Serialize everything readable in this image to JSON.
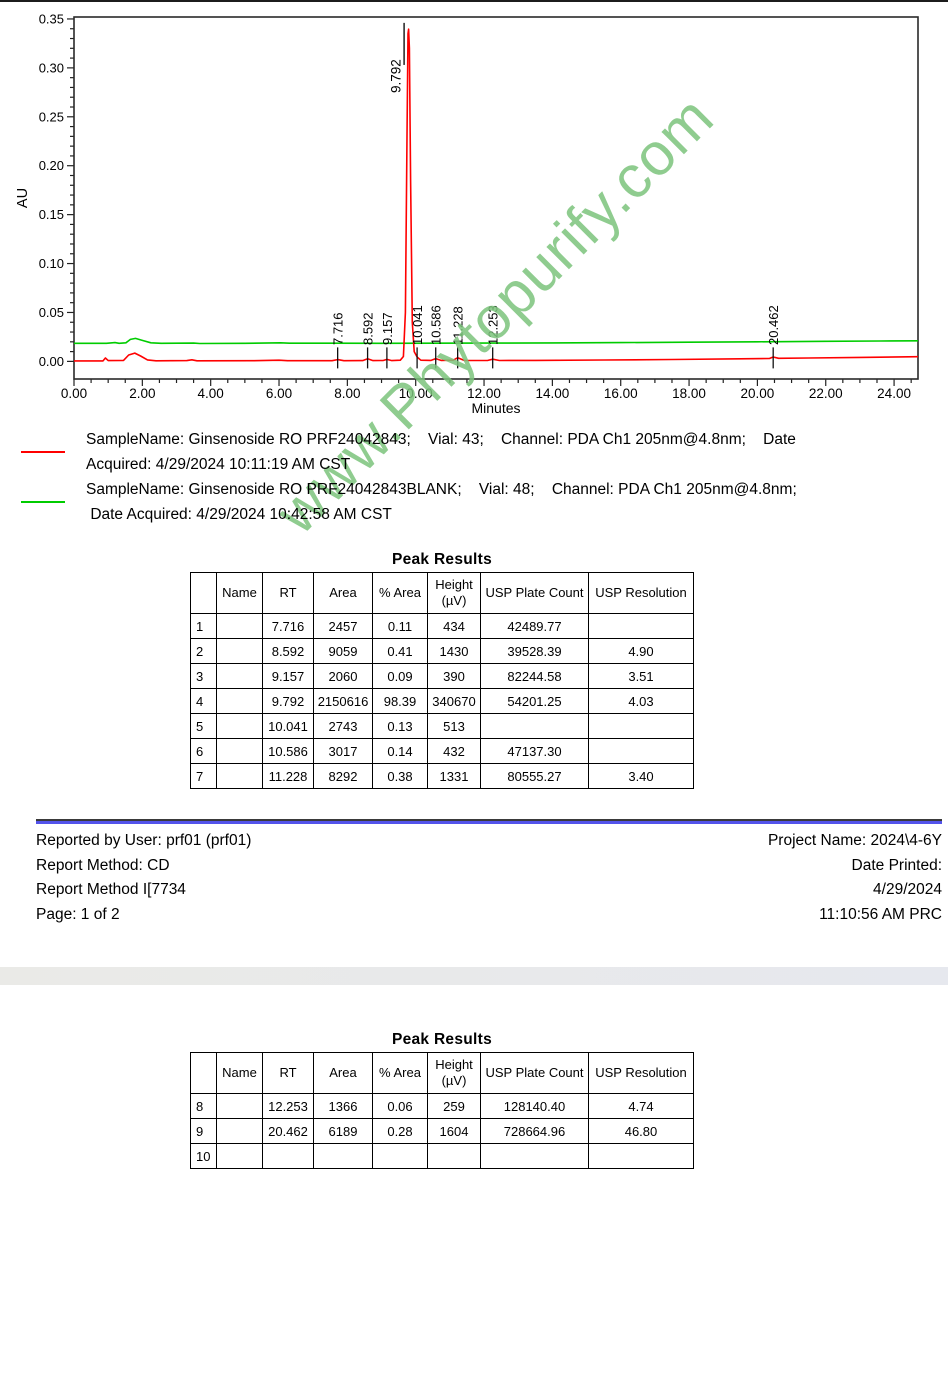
{
  "watermark": {
    "text": "www.Phytopurify.com",
    "color": "#7cc47c"
  },
  "chart_data": {
    "type": "line",
    "title": "",
    "xlabel": "Minutes",
    "ylabel": "AU",
    "xlim": [
      0,
      24.7
    ],
    "ylim": [
      -0.018,
      0.352
    ],
    "grid": false,
    "x_tick_values": [
      0,
      2,
      4,
      6,
      8,
      10,
      12,
      14,
      16,
      18,
      20,
      22,
      24
    ],
    "x_tick_labels": [
      "0.00",
      "2.00",
      "4.00",
      "6.00",
      "8.00",
      "10.00",
      "12.00",
      "14.00",
      "16.00",
      "18.00",
      "20.00",
      "22.00",
      "24.00"
    ],
    "x_minor_step": 0.5,
    "y_tick_values": [
      0,
      0.05,
      0.1,
      0.15,
      0.2,
      0.25,
      0.3,
      0.35
    ],
    "y_tick_labels": [
      "0.00",
      "0.05",
      "0.10",
      "0.15",
      "0.20",
      "0.25",
      "0.30",
      "0.35"
    ],
    "y_minor_step": 0.01,
    "peaks": [
      {
        "rt": 7.716,
        "label": "7.716"
      },
      {
        "rt": 8.592,
        "label": "8.592"
      },
      {
        "rt": 9.157,
        "label": "9.157"
      },
      {
        "rt": 9.792,
        "label": "9.792",
        "major": true
      },
      {
        "rt": 10.041,
        "label": "10.041"
      },
      {
        "rt": 10.586,
        "label": "10.586"
      },
      {
        "rt": 11.228,
        "label": "11.228"
      },
      {
        "rt": 12.253,
        "label": "12.253"
      },
      {
        "rt": 20.462,
        "label": "20.462"
      }
    ],
    "series": [
      {
        "name": "blank",
        "color": "#00cc00",
        "points": [
          [
            0,
            0.0185
          ],
          [
            0.95,
            0.0185
          ],
          [
            1.2,
            0.0192
          ],
          [
            1.32,
            0.0185
          ],
          [
            1.52,
            0.019
          ],
          [
            1.65,
            0.0225
          ],
          [
            1.8,
            0.0235
          ],
          [
            2.0,
            0.0215
          ],
          [
            2.25,
            0.019
          ],
          [
            2.55,
            0.0185
          ],
          [
            3.5,
            0.0187
          ],
          [
            3.68,
            0.0183
          ],
          [
            5.0,
            0.0185
          ],
          [
            6.05,
            0.019
          ],
          [
            6.3,
            0.0186
          ],
          [
            7.5,
            0.0186
          ],
          [
            9.0,
            0.0185
          ],
          [
            10.5,
            0.0186
          ],
          [
            12.0,
            0.0187
          ],
          [
            14.0,
            0.0189
          ],
          [
            16.0,
            0.0192
          ],
          [
            18.0,
            0.0196
          ],
          [
            20.0,
            0.02
          ],
          [
            22.0,
            0.0205
          ],
          [
            23.6,
            0.0208
          ],
          [
            24.7,
            0.021
          ]
        ]
      },
      {
        "name": "sample",
        "color": "#ff0000",
        "points": [
          [
            0,
            0.0005
          ],
          [
            0.85,
            0.0005
          ],
          [
            0.92,
            0.0035
          ],
          [
            1.0,
            0.0008
          ],
          [
            1.45,
            0.001
          ],
          [
            1.6,
            0.0065
          ],
          [
            1.78,
            0.0085
          ],
          [
            1.95,
            0.0055
          ],
          [
            2.15,
            0.0015
          ],
          [
            2.4,
            0.0006
          ],
          [
            3.3,
            0.0008
          ],
          [
            3.45,
            0.0016
          ],
          [
            3.6,
            0.0006
          ],
          [
            5.2,
            0.0007
          ],
          [
            6.0,
            0.0012
          ],
          [
            6.25,
            0.0007
          ],
          [
            7.55,
            0.0007
          ],
          [
            7.716,
            0.0018
          ],
          [
            7.9,
            0.0007
          ],
          [
            8.45,
            0.0008
          ],
          [
            8.592,
            0.0026
          ],
          [
            8.75,
            0.0008
          ],
          [
            9.05,
            0.0009
          ],
          [
            9.157,
            0.002
          ],
          [
            9.3,
            0.0008
          ],
          [
            9.55,
            0.0012
          ],
          [
            9.64,
            0.005
          ],
          [
            9.7,
            0.05
          ],
          [
            9.745,
            0.23
          ],
          [
            9.775,
            0.335
          ],
          [
            9.792,
            0.3395
          ],
          [
            9.815,
            0.32
          ],
          [
            9.85,
            0.185
          ],
          [
            9.9,
            0.04
          ],
          [
            9.955,
            0.01
          ],
          [
            10.041,
            0.0045
          ],
          [
            10.15,
            0.0012
          ],
          [
            10.45,
            0.001
          ],
          [
            10.586,
            0.0028
          ],
          [
            10.74,
            0.001
          ],
          [
            11.1,
            0.0012
          ],
          [
            11.228,
            0.0038
          ],
          [
            11.42,
            0.001
          ],
          [
            12.1,
            0.0009
          ],
          [
            12.253,
            0.0022
          ],
          [
            12.45,
            0.0009
          ],
          [
            13.5,
            0.001
          ],
          [
            15.5,
            0.0014
          ],
          [
            17.5,
            0.0019
          ],
          [
            19.5,
            0.0026
          ],
          [
            20.35,
            0.003
          ],
          [
            20.462,
            0.0045
          ],
          [
            20.62,
            0.0032
          ],
          [
            21.5,
            0.0035
          ],
          [
            23,
            0.0041
          ],
          [
            24.7,
            0.0048
          ]
        ]
      }
    ]
  },
  "legend": {
    "entries": [
      {
        "color": "#ff0000",
        "text": "SampleName: Ginsenoside RO PRF24042843;    Vial: 43;    Channel: PDA Ch1 205nm@4.8nm;    Date\nAcquired: 4/29/2024 10:11:19 AM CST"
      },
      {
        "color": "#00cc00",
        "text": "SampleName: Ginsenoside RO PRF24042843BLANK;    Vial: 48;    Channel: PDA Ch1 205nm@4.8nm;\n Date Acquired: 4/29/2024 10:42:58 AM CST"
      }
    ]
  },
  "tables": [
    {
      "title": "Peak Results",
      "columns": [
        "",
        "Name",
        "RT",
        "Area",
        "% Area",
        "Height\n(µV)",
        "USP Plate Count",
        "USP Resolution"
      ],
      "rows": [
        [
          "1",
          "",
          "7.716",
          "2457",
          "0.11",
          "434",
          "42489.77",
          ""
        ],
        [
          "2",
          "",
          "8.592",
          "9059",
          "0.41",
          "1430",
          "39528.39",
          "4.90"
        ],
        [
          "3",
          "",
          "9.157",
          "2060",
          "0.09",
          "390",
          "82244.58",
          "3.51"
        ],
        [
          "4",
          "",
          "9.792",
          "2150616",
          "98.39",
          "340670",
          "54201.25",
          "4.03"
        ],
        [
          "5",
          "",
          "10.041",
          "2743",
          "0.13",
          "513",
          "",
          ""
        ],
        [
          "6",
          "",
          "10.586",
          "3017",
          "0.14",
          "432",
          "47137.30",
          ""
        ],
        [
          "7",
          "",
          "11.228",
          "8292",
          "0.38",
          "1331",
          "80555.27",
          "3.40"
        ]
      ]
    },
    {
      "title": "Peak Results",
      "columns": [
        "",
        "Name",
        "RT",
        "Area",
        "% Area",
        "Height\n(µV)",
        "USP Plate Count",
        "USP Resolution"
      ],
      "rows": [
        [
          "8",
          "",
          "12.253",
          "1366",
          "0.06",
          "259",
          "128140.40",
          "4.74"
        ],
        [
          "9",
          "",
          "20.462",
          "6189",
          "0.28",
          "1604",
          "728664.96",
          "46.80"
        ],
        [
          "10",
          "",
          "",
          "",
          "",
          "",
          "",
          ""
        ]
      ]
    }
  ],
  "footer": {
    "left": [
      "Reported by User:  prf01 (prf01)",
      "Report Method:  CD",
      "Report Method I[7734",
      "Page: 1 of 2"
    ],
    "right": [
      "Project Name:    2024\\4-6Y",
      "Date Printed:",
      "4/29/2024",
      "11:10:56 AM PRC"
    ]
  }
}
